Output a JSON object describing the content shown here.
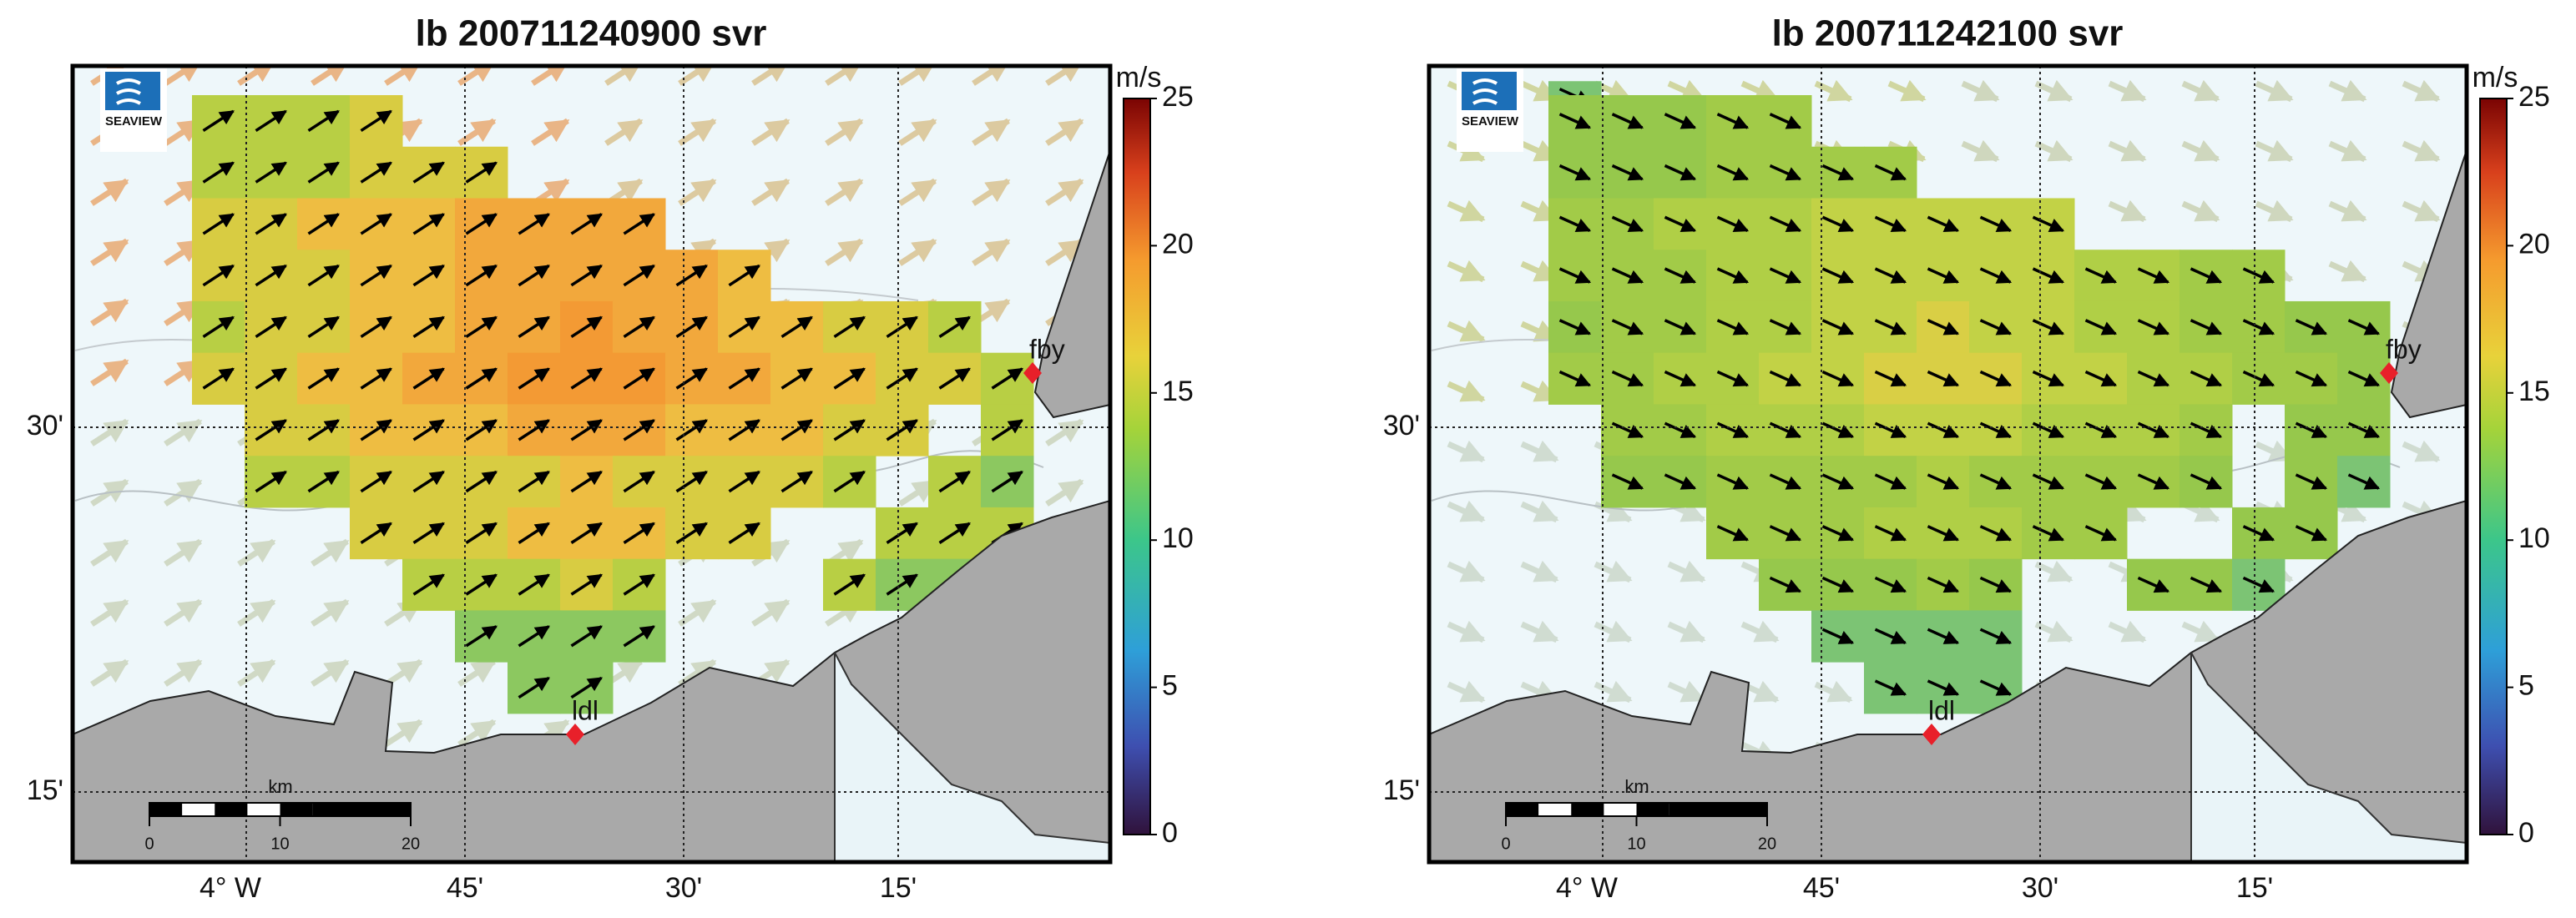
{
  "panels": [
    {
      "title": "lb 200711240900 svr",
      "logo": "SEAVIEW",
      "y_labels": [
        "30'",
        "15'"
      ],
      "x_labels": [
        "4° W",
        "45'",
        "30'",
        "15'"
      ],
      "stations": [
        "fby",
        "ldl"
      ],
      "scale_bar": {
        "unit": "km",
        "ticks": [
          0,
          10,
          20
        ]
      },
      "colorbar": {
        "unit": "m/s",
        "lim": [
          0,
          25
        ],
        "ticks": [
          0,
          5,
          10,
          15,
          20,
          25
        ]
      }
    },
    {
      "title": "lb 200711242100 svr",
      "logo": "SEAVIEW",
      "y_labels": [
        "30'",
        "15'"
      ],
      "x_labels": [
        "4° W",
        "45'",
        "30'",
        "15'"
      ],
      "stations": [
        "fby",
        "ldl"
      ],
      "scale_bar": {
        "unit": "km",
        "ticks": [
          0,
          10,
          20
        ]
      },
      "colorbar": {
        "unit": "m/s",
        "lim": [
          0,
          25
        ],
        "ticks": [
          0,
          5,
          10,
          15,
          20,
          25
        ]
      }
    }
  ]
}
